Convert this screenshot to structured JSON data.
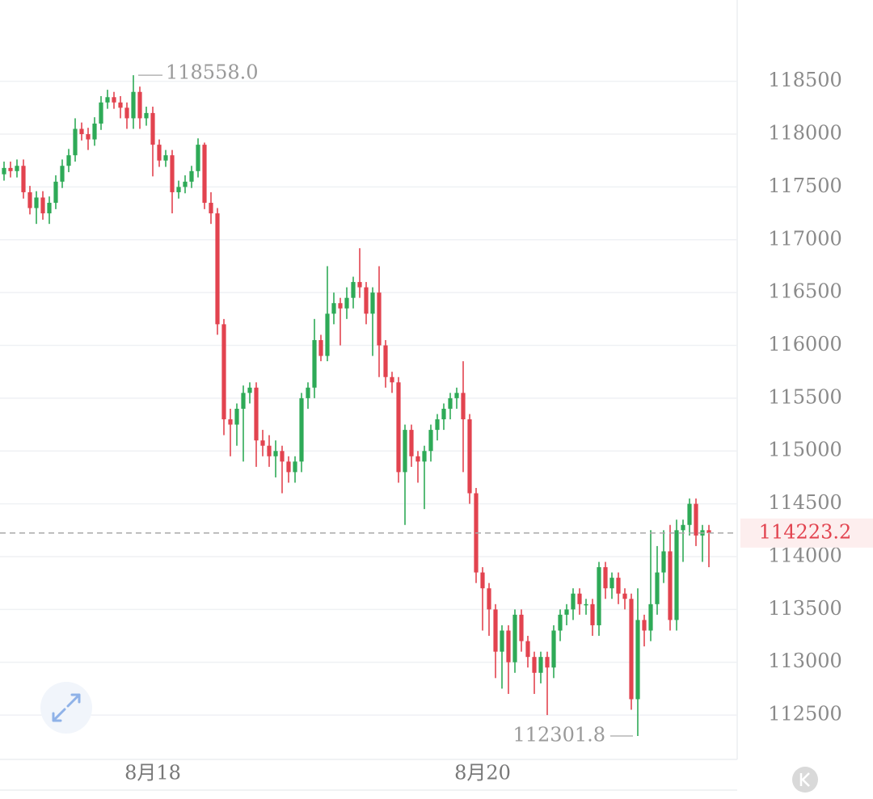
{
  "chart_data": {
    "type": "candlestick",
    "up_color": "#2eaa57",
    "down_color": "#e2434f",
    "ylim": [
      112080,
      119270
    ],
    "yticks": [
      112500,
      113000,
      113500,
      114000,
      114500,
      115000,
      115500,
      116000,
      116500,
      117000,
      117500,
      118000,
      118500
    ],
    "grid": true,
    "last_price": 114223.2,
    "annotations": [
      {
        "value": 118558,
        "label": "118558.0"
      },
      {
        "value": 112301.8,
        "label": "112301.8"
      }
    ],
    "categories": [
      null,
      null,
      null,
      null,
      null,
      null,
      null,
      null,
      null,
      null,
      null,
      null,
      null,
      null,
      null,
      null,
      null,
      null,
      null,
      null,
      null,
      null,
      null,
      "8月18",
      null,
      null,
      null,
      null,
      null,
      null,
      null,
      null,
      null,
      null,
      null,
      null,
      null,
      null,
      null,
      null,
      null,
      null,
      null,
      null,
      null,
      null,
      null,
      null,
      null,
      null,
      null,
      null,
      null,
      null,
      null,
      null,
      null,
      null,
      null,
      null,
      null,
      null,
      null,
      null,
      null,
      null,
      null,
      null,
      null,
      null,
      null,
      null,
      null,
      null,
      "8月20",
      null,
      null,
      null,
      null,
      null,
      null,
      null,
      null,
      null,
      null,
      null,
      null,
      null,
      null,
      null,
      null,
      null,
      null,
      null,
      null,
      null,
      null,
      null,
      null,
      null,
      null,
      null,
      null,
      null,
      null,
      null,
      null,
      null,
      null,
      null
    ],
    "open": [
      117620,
      117680,
      117650,
      117700,
      117450,
      117300,
      117400,
      117250,
      117350,
      117550,
      117700,
      117800,
      118050,
      118000,
      117950,
      118100,
      118300,
      118350,
      118300,
      118250,
      118150,
      118400,
      118150,
      118200,
      117900,
      117750,
      117800,
      117450,
      117500,
      117550,
      117650,
      117900,
      117350,
      117250,
      116200,
      115300,
      115250,
      115400,
      115550,
      115600,
      115100,
      115050,
      114950,
      115000,
      114900,
      114800,
      114900,
      115500,
      115600,
      116050,
      115900,
      116300,
      116400,
      116350,
      116450,
      116600,
      116550,
      116300,
      116500,
      116000,
      115700,
      115650,
      114800,
      115200,
      114950,
      114900,
      115000,
      115200,
      115300,
      115400,
      115500,
      115550,
      115300,
      114600,
      113850,
      113700,
      113500,
      113100,
      113300,
      113000,
      113450,
      113200,
      113050,
      112900,
      113050,
      112950,
      113300,
      113450,
      113500,
      113650,
      113550,
      113550,
      113350,
      113900,
      113700,
      113800,
      113650,
      113600,
      112650,
      113400,
      113300,
      113550,
      113850,
      114050,
      113400,
      114250,
      114300,
      114500,
      114200,
      114250
    ],
    "high": [
      117740,
      117740,
      117760,
      117760,
      117510,
      117460,
      117460,
      117410,
      117610,
      117760,
      117860,
      118150,
      118110,
      118060,
      118160,
      118360,
      118420,
      118400,
      118360,
      118300,
      118558,
      118450,
      118260,
      118260,
      117950,
      117850,
      117850,
      117560,
      117610,
      117700,
      117960,
      117920,
      117450,
      117300,
      116250,
      115400,
      115450,
      115620,
      115650,
      115650,
      115200,
      115150,
      115100,
      115050,
      114950,
      114950,
      115550,
      115650,
      116250,
      116100,
      116750,
      116500,
      116450,
      116550,
      116650,
      116920,
      116600,
      116550,
      116750,
      116050,
      115750,
      115700,
      115250,
      115250,
      115000,
      115050,
      115250,
      115350,
      115450,
      115550,
      115600,
      115850,
      115350,
      114650,
      113900,
      113750,
      113550,
      113350,
      113350,
      113500,
      113500,
      113250,
      113100,
      113100,
      113100,
      113350,
      113500,
      113550,
      113700,
      113700,
      113600,
      113600,
      113950,
      113950,
      113850,
      113850,
      113700,
      113650,
      113700,
      113450,
      114250,
      114100,
      114250,
      114300,
      114350,
      114350,
      114550,
      114550,
      114300,
      114300
    ],
    "low": [
      117560,
      117590,
      117590,
      117390,
      117240,
      117150,
      117190,
      117150,
      117290,
      117490,
      117640,
      117740,
      117940,
      117850,
      117890,
      118040,
      118240,
      118240,
      118150,
      118050,
      118050,
      118050,
      118080,
      117600,
      117690,
      117690,
      117250,
      117390,
      117440,
      117490,
      117590,
      117290,
      117150,
      116100,
      115150,
      114950,
      115050,
      114900,
      115450,
      114850,
      114950,
      114850,
      114750,
      114600,
      114700,
      114700,
      114800,
      115400,
      115500,
      115850,
      115850,
      116200,
      116000,
      116250,
      116350,
      116450,
      116200,
      115900,
      115700,
      115600,
      115550,
      114700,
      114300,
      114850,
      114700,
      114450,
      114900,
      115100,
      115200,
      115300,
      115400,
      114800,
      114500,
      113750,
      113300,
      113250,
      112850,
      112750,
      112700,
      112900,
      113100,
      112950,
      112700,
      112800,
      112500,
      112850,
      113200,
      113350,
      113400,
      113450,
      113450,
      113250,
      113250,
      113600,
      113600,
      113550,
      113500,
      112550,
      112301.8,
      113150,
      113200,
      113450,
      113750,
      113300,
      113300,
      113950,
      114200,
      114100,
      113950,
      113900
    ],
    "close": [
      117680,
      117650,
      117700,
      117450,
      117300,
      117400,
      117250,
      117350,
      117550,
      117700,
      117800,
      118050,
      118000,
      117950,
      118100,
      118300,
      118350,
      118300,
      118250,
      118150,
      118400,
      118150,
      118200,
      117900,
      117750,
      117800,
      117450,
      117500,
      117550,
      117650,
      117900,
      117350,
      117250,
      116200,
      115300,
      115250,
      115400,
      115550,
      115600,
      115100,
      115050,
      114950,
      115000,
      114900,
      114800,
      114900,
      115500,
      115600,
      116050,
      115900,
      116300,
      116400,
      116350,
      116450,
      116600,
      116550,
      116300,
      116500,
      116000,
      115700,
      115650,
      114800,
      115200,
      114950,
      114900,
      115000,
      115200,
      115300,
      115400,
      115500,
      115550,
      115300,
      114600,
      113850,
      113700,
      113500,
      113100,
      113300,
      113000,
      113450,
      113200,
      113050,
      112900,
      113050,
      112950,
      113300,
      113450,
      113500,
      113650,
      113550,
      113550,
      113350,
      113900,
      113700,
      113800,
      113650,
      113600,
      112650,
      113400,
      113300,
      113550,
      113850,
      114050,
      113400,
      114250,
      114300,
      114500,
      114200,
      114250,
      114223.2
    ]
  }
}
